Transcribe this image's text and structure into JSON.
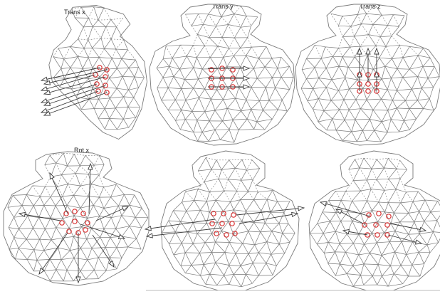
{
  "panels": [
    {
      "id": "trans-x",
      "title": "Trans x"
    },
    {
      "id": "trans-y",
      "title": "Trans y"
    },
    {
      "id": "trans-z",
      "title": "Trans z"
    },
    {
      "id": "rot-x",
      "title": "Rot x"
    },
    {
      "id": "rot-y",
      "title": ""
    },
    {
      "id": "rot-z",
      "title": ""
    }
  ],
  "colors": {
    "mesh": "#7a7a7a",
    "hidden_mesh": "#8a8a8a",
    "marker": "#d83030",
    "arrow": "#3a3a3a"
  }
}
